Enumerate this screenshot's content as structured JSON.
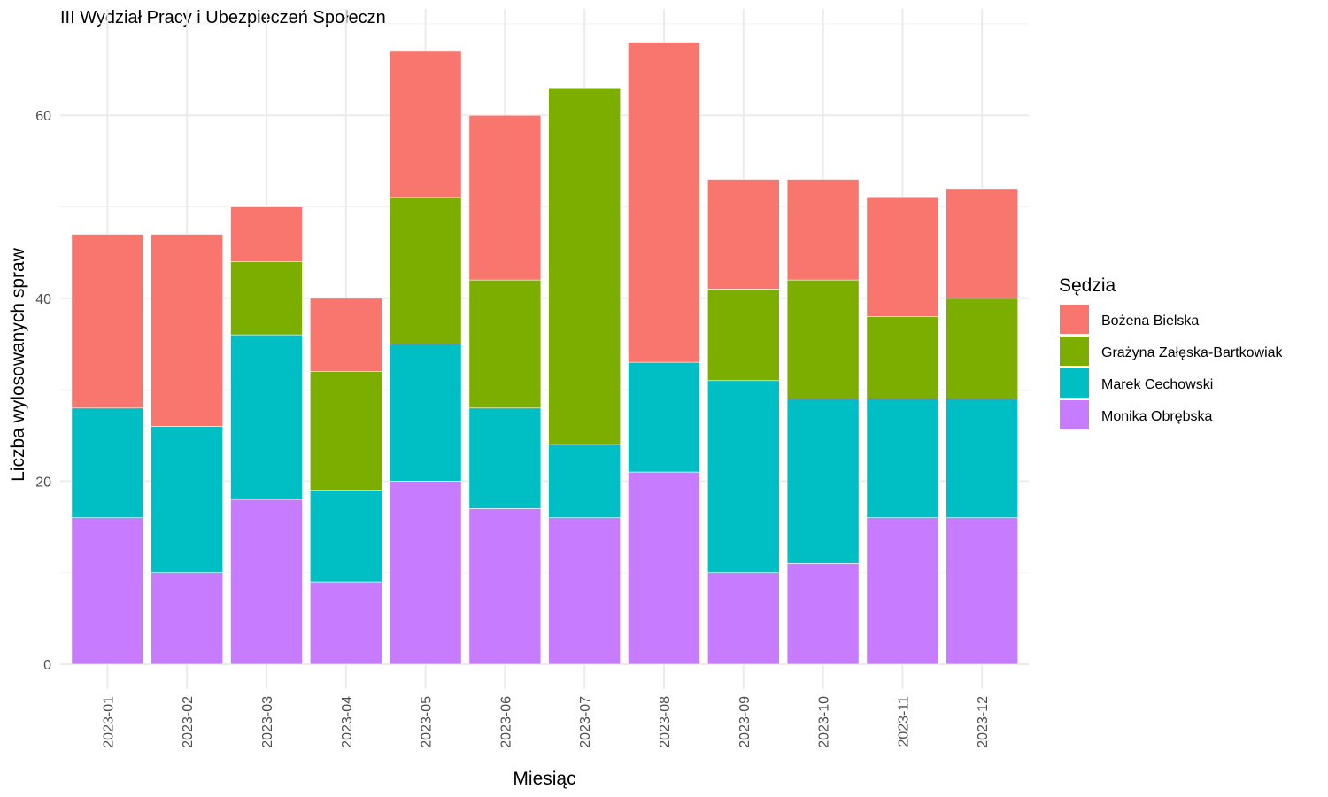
{
  "chart_data": {
    "type": "bar",
    "stacked": true,
    "title": "III Wydział Pracy i Ubezpieczeń Społeczn",
    "xlabel": "Miesiąc",
    "ylabel": "Liczba wylosowanych spraw",
    "ylim": [
      0,
      70
    ],
    "yticks": [
      0,
      20,
      40,
      60
    ],
    "grid": true,
    "legend_position": "right",
    "legend_title": "Sędzia",
    "categories": [
      "2023-01",
      "2023-02",
      "2023-03",
      "2023-04",
      "2023-05",
      "2023-06",
      "2023-07",
      "2023-08",
      "2023-09",
      "2023-10",
      "2023-11",
      "2023-12"
    ],
    "series": [
      {
        "name": "Monika Obrębska",
        "color": "#C77CFF",
        "values": [
          16,
          10,
          18,
          9,
          20,
          17,
          16,
          21,
          10,
          11,
          16,
          16
        ]
      },
      {
        "name": "Marek Cechowski",
        "color": "#00BFC4",
        "values": [
          12,
          16,
          18,
          10,
          15,
          11,
          8,
          12,
          21,
          18,
          13,
          13
        ]
      },
      {
        "name": "Grażyna Załęska-Bartkowiak",
        "color": "#7CAE00",
        "values": [
          0,
          0,
          8,
          13,
          16,
          14,
          39,
          0,
          10,
          13,
          9,
          11
        ]
      },
      {
        "name": "Bożena Bielska",
        "color": "#F8766D",
        "values": [
          19,
          21,
          6,
          8,
          16,
          18,
          0,
          35,
          12,
          11,
          13,
          12
        ]
      }
    ],
    "legend_order": [
      "Bożena Bielska",
      "Grażyna Załęska-Bartkowiak",
      "Marek Cechowski",
      "Monika Obrębska"
    ]
  }
}
